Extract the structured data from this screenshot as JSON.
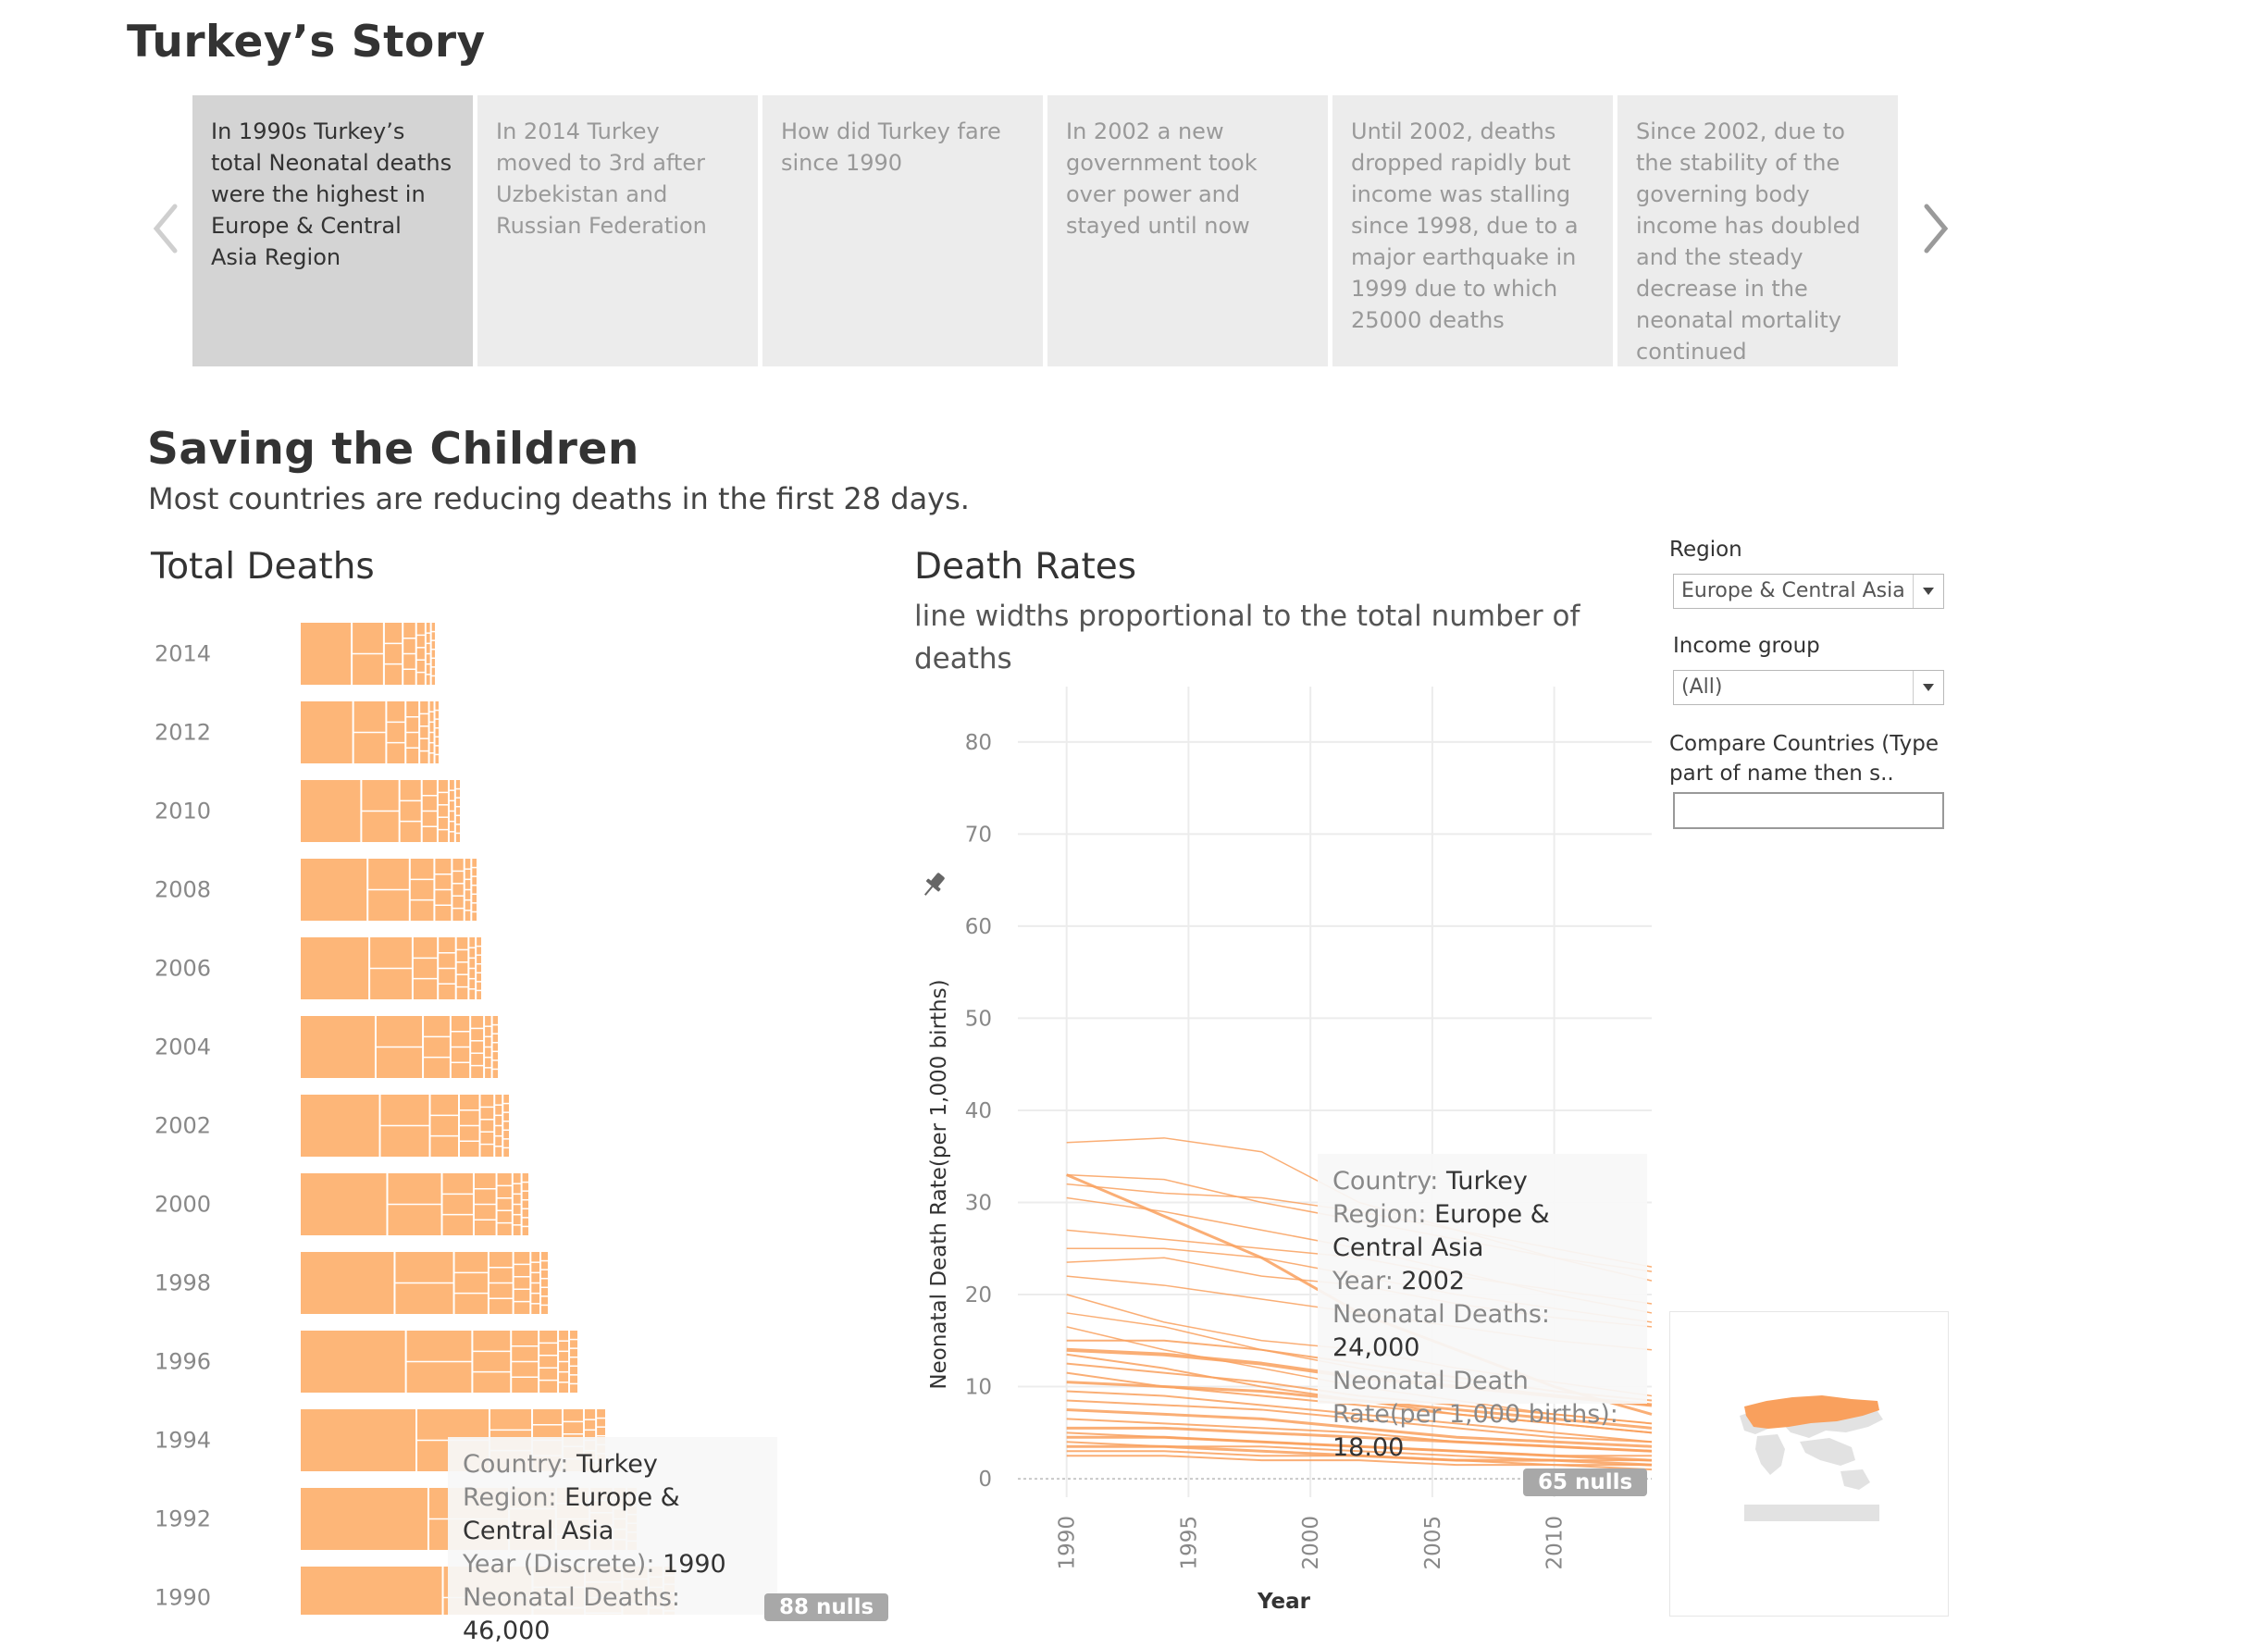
{
  "story": {
    "title": "Turkey’s Story",
    "points": [
      {
        "text": "In 1990s Turkey’s total Neonatal deaths were the highest in Europe & Central Asia Region"
      },
      {
        "text": "In 2014 Turkey moved to 3rd after Uzbekistan and Russian Federation"
      },
      {
        "text": "How did Turkey fare since 1990"
      },
      {
        "text": "In 2002 a new government took over power and stayed until now"
      },
      {
        "text": "Until 2002, deaths dropped rapidly but income was stalling since 1998, due to a major earthquake in 1999 due to which 25000 deaths"
      },
      {
        "text": "Since 2002, due to the stability of the governing body income has doubled and the steady decrease in the neonatal mortality continued"
      }
    ],
    "active_index": 0,
    "prev_icon": "chevron-left-icon",
    "next_icon": "chevron-right-icon"
  },
  "dashboard": {
    "title": "Saving the Children",
    "subtitle": "Most countries are reducing deaths in the first 28 days."
  },
  "total_deaths": {
    "title": "Total Deaths",
    "tooltip": {
      "country_label": "Country: ",
      "country": "Turkey",
      "region_label": "Region: ",
      "region": "Europe & Central Asia",
      "year_label": "Year (Discrete): ",
      "year": "1990",
      "deaths_label": "Neonatal Deaths: ",
      "deaths": "46,000"
    },
    "nulls_badge": "88 nulls"
  },
  "death_rates": {
    "title": "Death Rates",
    "subtitle": "line widths proportional to the total number of deaths",
    "ylabel": "Neonatal Death Rate(per 1,000 births)",
    "xlabel": "Year",
    "nulls_badge": "65 nulls",
    "tooltip": {
      "country_label": "Country: ",
      "country": "Turkey",
      "region_label": "Region: ",
      "region": "Europe & Central Asia",
      "year_label": "Year: ",
      "year": "2002",
      "deaths_label": "Neonatal Deaths: ",
      "deaths": "24,000",
      "rate_label": "Neonatal Death Rate(per 1,000 births): ",
      "rate": "18.00"
    }
  },
  "filters": {
    "region_label": "Region",
    "region_value": "Europe & Central Asia",
    "income_label": "Income group",
    "income_value": "(All)",
    "compare_label": "Compare Countries (Type part of name then s..",
    "compare_value": ""
  },
  "colors": {
    "orange": "#f9a05d",
    "orange_fill": "#fdb678",
    "story_active": "#d4d4d4",
    "story_inactive": "#ececec"
  },
  "chart_data": [
    {
      "type": "bar",
      "title": "Total Deaths",
      "categories": [
        "2014",
        "2012",
        "2010",
        "2008",
        "2006",
        "2004",
        "2002",
        "2000",
        "1998",
        "1996",
        "1994",
        "1992",
        "1990"
      ],
      "values": [
        145,
        149,
        172,
        190,
        195,
        213,
        225,
        246,
        267,
        299,
        329,
        363,
        404
      ],
      "value_units": "relative total neonatal deaths (treemap strip width)"
    },
    {
      "type": "line",
      "title": "Death Rates",
      "xlabel": "Year",
      "ylabel": "Neonatal Death Rate(per 1,000 births)",
      "xlim": [
        1988,
        2014
      ],
      "ylim": [
        -2,
        84
      ],
      "x_ticks": [
        1990,
        1995,
        2000,
        2005,
        2010
      ],
      "y_ticks": [
        0,
        10,
        20,
        30,
        40,
        50,
        60,
        70,
        80
      ],
      "x": [
        1990,
        1994,
        1998,
        2002,
        2006,
        2010,
        2014
      ],
      "series": [
        {
          "values": [
            36.5,
            37.0,
            35.5,
            30.0,
            27.0,
            24.0,
            21.5
          ],
          "weight": 1.5
        },
        {
          "values": [
            33.0,
            32.5,
            30.0,
            28.0,
            26.0,
            24.0,
            22.5
          ],
          "weight": 1.5
        },
        {
          "values": [
            32.0,
            31.0,
            30.5,
            29.0,
            27.0,
            25.0,
            23.0
          ],
          "weight": 1.5
        },
        {
          "values": [
            33.0,
            28.5,
            24.0,
            18.0,
            14.0,
            10.0,
            7.0
          ],
          "weight": 3
        },
        {
          "values": [
            30.5,
            29.0,
            27.0,
            25.0,
            22.5,
            20.0,
            18.0
          ],
          "weight": 1.5
        },
        {
          "values": [
            27.0,
            26.0,
            25.0,
            24.0,
            22.0,
            20.5,
            19.0
          ],
          "weight": 1.5
        },
        {
          "values": [
            25.0,
            25.0,
            24.0,
            22.0,
            20.0,
            18.5,
            17.0
          ],
          "weight": 1.5
        },
        {
          "values": [
            23.5,
            24.0,
            22.0,
            21.0,
            19.0,
            17.5,
            16.5
          ],
          "weight": 1.5
        },
        {
          "values": [
            22.0,
            21.0,
            19.5,
            18.0,
            16.5,
            15.0,
            14.0
          ],
          "weight": 1.5
        },
        {
          "values": [
            20.0,
            17.0,
            15.0,
            14.0,
            12.0,
            10.5,
            9.0
          ],
          "weight": 1.5
        },
        {
          "values": [
            18.0,
            16.5,
            14.0,
            12.0,
            10.5,
            9.0,
            8.0
          ],
          "weight": 1.5
        },
        {
          "values": [
            16.5,
            14.0,
            12.0,
            10.0,
            8.5,
            7.0,
            6.0
          ],
          "weight": 1.5
        },
        {
          "values": [
            15.0,
            15.0,
            14.0,
            12.5,
            11.0,
            9.5,
            8.5
          ],
          "weight": 2
        },
        {
          "values": [
            14.0,
            13.5,
            12.5,
            11.0,
            10.0,
            9.0,
            8.0
          ],
          "weight": 4
        },
        {
          "values": [
            13.5,
            12.0,
            10.0,
            8.5,
            7.0,
            6.0,
            5.0
          ],
          "weight": 2
        },
        {
          "values": [
            12.5,
            11.5,
            10.5,
            9.0,
            8.0,
            7.0,
            6.0
          ],
          "weight": 2
        },
        {
          "values": [
            11.5,
            10.0,
            9.0,
            8.0,
            7.0,
            6.0,
            5.0
          ],
          "weight": 2
        },
        {
          "values": [
            10.5,
            10.0,
            9.5,
            8.5,
            7.5,
            6.5,
            5.5
          ],
          "weight": 3
        },
        {
          "values": [
            9.5,
            9.0,
            8.0,
            7.0,
            6.0,
            5.0,
            4.0
          ],
          "weight": 2
        },
        {
          "values": [
            8.5,
            8.0,
            7.5,
            6.5,
            5.5,
            4.5,
            4.0
          ],
          "weight": 2
        },
        {
          "values": [
            7.5,
            7.0,
            6.5,
            5.5,
            4.5,
            4.0,
            3.5
          ],
          "weight": 3
        },
        {
          "values": [
            6.5,
            6.0,
            5.5,
            5.0,
            4.0,
            3.5,
            3.0
          ],
          "weight": 2
        },
        {
          "values": [
            5.5,
            5.5,
            5.0,
            4.5,
            4.0,
            3.5,
            3.0
          ],
          "weight": 3
        },
        {
          "values": [
            5.0,
            4.5,
            4.0,
            3.5,
            3.0,
            2.5,
            2.5
          ],
          "weight": 2
        },
        {
          "values": [
            4.5,
            4.5,
            4.0,
            3.5,
            3.0,
            2.5,
            2.0
          ],
          "weight": 3
        },
        {
          "values": [
            4.0,
            3.5,
            3.5,
            3.0,
            2.5,
            2.0,
            2.0
          ],
          "weight": 2
        },
        {
          "values": [
            3.5,
            3.5,
            3.0,
            2.5,
            2.0,
            2.0,
            1.5
          ],
          "weight": 3
        },
        {
          "values": [
            3.0,
            3.0,
            2.5,
            2.5,
            2.0,
            1.5,
            1.5
          ],
          "weight": 2
        },
        {
          "values": [
            2.5,
            2.5,
            2.0,
            2.0,
            1.5,
            1.5,
            1.0
          ],
          "weight": 2
        }
      ]
    }
  ]
}
